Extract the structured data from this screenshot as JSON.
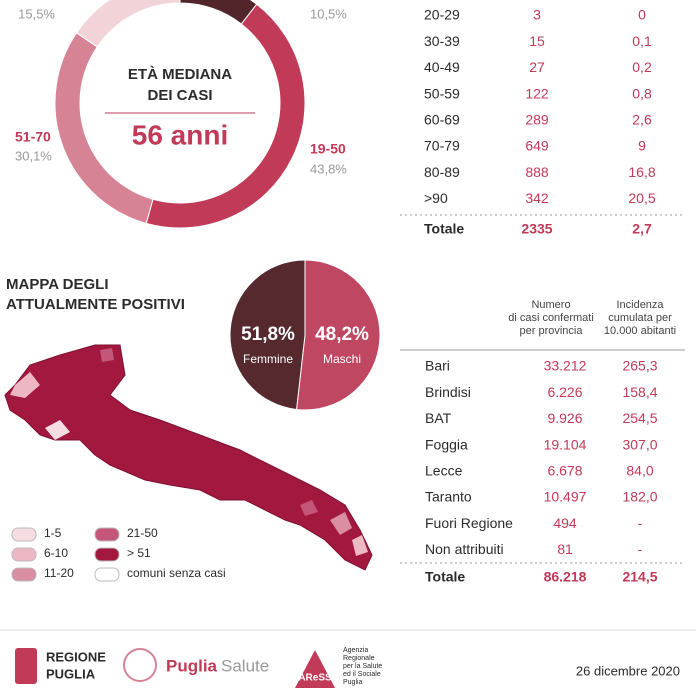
{
  "age_donut": {
    "categories": [
      null,
      "19-50",
      "51-70",
      null
    ],
    "values": [
      10.5,
      43.8,
      30.1,
      15.5
    ],
    "value_labels": [
      "10,5%",
      "43,8%",
      "30,1%",
      "15,5%"
    ],
    "colors": [
      "#52252b",
      "#c13a58",
      "#d68395",
      "#f1d3d8"
    ],
    "center_title": [
      "ETÀ MEDIANA",
      "DEI CASI"
    ],
    "center_value": "56 anni"
  },
  "age_table": {
    "rows": [
      [
        "20-29",
        "3",
        "0"
      ],
      [
        "30-39",
        "15",
        "0,1"
      ],
      [
        "40-49",
        "27",
        "0,2"
      ],
      [
        "50-59",
        "122",
        "0,8"
      ],
      [
        "60-69",
        "289",
        "2,6"
      ],
      [
        "70-79",
        "649",
        "9"
      ],
      [
        "80-89",
        "888",
        "16,8"
      ],
      [
        ">90",
        "342",
        "20,5"
      ]
    ],
    "total": [
      "Totale",
      "2335",
      "2,7"
    ]
  },
  "map": {
    "title": [
      "MAPPA DEGLI",
      "ATTUALMENTE POSITIVI"
    ],
    "legend": [
      {
        "label": "1-5",
        "color": "#f6dde2"
      },
      {
        "label": "6-10",
        "color": "#edb8c3"
      },
      {
        "label": "11-20",
        "color": "#d98ea2"
      },
      {
        "label": "21-50",
        "color": "#c4567a"
      },
      {
        "label": "> 51",
        "color": "#a3183f"
      },
      {
        "label": "comuni senza casi",
        "color": "#ffffff"
      }
    ]
  },
  "gender_pie": {
    "categories": [
      "Femmine",
      "Maschi"
    ],
    "values": [
      51.8,
      48.2
    ],
    "value_labels": [
      "51,8%",
      "48,2%"
    ],
    "colors": [
      "#c04762",
      "#55292e"
    ]
  },
  "province_table": {
    "headers": [
      [
        "Numero",
        "di casi confermati",
        "per provincia"
      ],
      [
        "Incidenza",
        "cumulata per",
        "10.000 abitanti"
      ]
    ],
    "rows": [
      [
        "Bari",
        "33.212",
        "265,3"
      ],
      [
        "Brindisi",
        "6.226",
        "158,4"
      ],
      [
        "BAT",
        "9.926",
        "254,5"
      ],
      [
        "Foggia",
        "19.104",
        "307,0"
      ],
      [
        "Lecce",
        "6.678",
        "84,0"
      ],
      [
        "Taranto",
        "10.497",
        "182,0"
      ],
      [
        "Fuori Regione",
        "494",
        "-"
      ],
      [
        "Non attribuiti",
        "81",
        "-"
      ]
    ],
    "total": [
      "Totale",
      "86.218",
      "214,5"
    ]
  },
  "footer": {
    "regione": [
      "REGIONE",
      "PUGLIA"
    ],
    "puglia_salute": [
      "Puglia",
      "Salute"
    ],
    "aress": "AReSS",
    "aress_text": [
      "Agenzia",
      "Regionale",
      "per la Salute",
      "ed il Sociale",
      "Puglia"
    ],
    "date": "26 dicembre 2020"
  }
}
